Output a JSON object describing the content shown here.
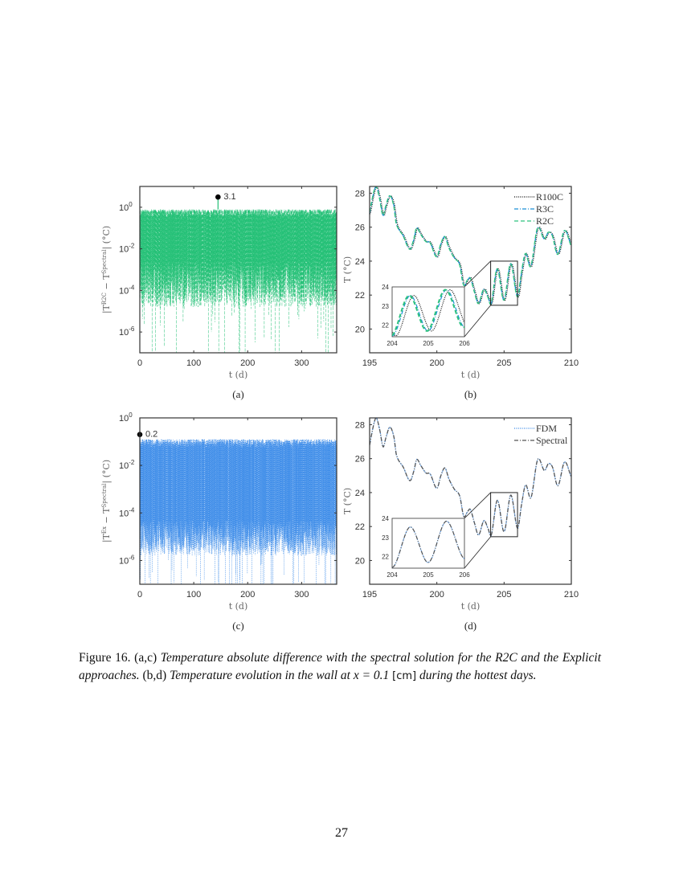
{
  "caption": {
    "label": "Figure 16.",
    "ac": "(a,c)",
    "ac_text": "Temperature absolute difference with the spectral solution for the R2C and the Explicit approaches.",
    "bd": "(b,d)",
    "bd_text": "Temperature evolution in the wall at x = 0.1",
    "unit": "[cm]",
    "end_text": "during the hottest days."
  },
  "page_number": "27",
  "chart_data": [
    {
      "panel_label": "(a)",
      "type": "line",
      "yscale": "log",
      "xlabel": "t (d)",
      "ylabel": {
        "left": "|T",
        "sup1": "R2C",
        "mid": " − T",
        "sup2": "Spectral",
        "right": "| (°C)"
      },
      "xlim": [
        0,
        365
      ],
      "ylim_exp": [
        -7,
        1
      ],
      "xticks": [
        "0",
        "100",
        "200",
        "300"
      ],
      "xtick_values": [
        0,
        100,
        200,
        300
      ],
      "yticks_base": "10",
      "yticks_exp": [
        "0",
        "-2",
        "-4",
        "-6"
      ],
      "ytick_values": [
        0,
        -2,
        -4,
        -6
      ],
      "series_color": "#25c077",
      "typical_upper_exp": [
        -0.6,
        -0.1
      ],
      "typical_lower_exp": [
        -4.8,
        -2.6
      ],
      "annotation": {
        "t": 145,
        "value": 3.1,
        "label": "3.1"
      }
    },
    {
      "panel_label": "(b)",
      "type": "line",
      "xlabel": "t (d)",
      "ylabel": "T (°C)",
      "xlim": [
        195,
        210
      ],
      "ylim": [
        18.6,
        28.4
      ],
      "xticks": [
        "195",
        "200",
        "205",
        "210"
      ],
      "xtick_values": [
        195,
        200,
        205,
        210
      ],
      "yticks": [
        "20",
        "22",
        "24",
        "26",
        "28"
      ],
      "ytick_values": [
        20,
        22,
        24,
        26,
        28
      ],
      "t": [
        195,
        195.3,
        195.5,
        195.75,
        196,
        196.2,
        196.5,
        196.8,
        197,
        197.5,
        198,
        198.3,
        198.5,
        198.8,
        199.2,
        199.5,
        200,
        200.3,
        200.6,
        200.9,
        201.3,
        201.7,
        202,
        202.3,
        202.5,
        202.8,
        203.1,
        203.5,
        203.8,
        204.05,
        204.5,
        205,
        205.5,
        206,
        206.3,
        206.6,
        207,
        207.5,
        208,
        208.3,
        208.6,
        209,
        209.5,
        210
      ],
      "T": [
        26.8,
        28.0,
        28.4,
        27.7,
        26.7,
        27.2,
        27.85,
        27.3,
        26.2,
        25.5,
        24.7,
        25.3,
        25.95,
        25.6,
        25.15,
        25.1,
        24.25,
        25.0,
        25.45,
        24.8,
        24.2,
        23.8,
        22.6,
        22.9,
        23.0,
        22.2,
        21.5,
        22.35,
        21.9,
        21.5,
        23.55,
        21.7,
        23.85,
        21.9,
        23.3,
        24.45,
        23.7,
        25.95,
        25.3,
        25.7,
        25.5,
        24.4,
        25.8,
        24.9
      ],
      "series": [
        {
          "name": "R100C",
          "color": "#111111",
          "style": "dotted",
          "time_shift": 0.06
        },
        {
          "name": "R3C",
          "color": "#1a8fd6",
          "style": "dashdot",
          "time_shift": 0
        },
        {
          "name": "R2C",
          "color": "#2ec27e",
          "style": "dashed",
          "time_shift": -0.02
        }
      ],
      "inset": {
        "xlim": [
          204,
          206
        ],
        "ylim": [
          21.4,
          24
        ],
        "xticks": [
          "204",
          "205",
          "206"
        ],
        "xtick_values": [
          204,
          205,
          206
        ],
        "yticks": [
          "22",
          "23",
          "24"
        ],
        "ytick_values": [
          22,
          23,
          24
        ]
      },
      "legend_position": "top-right"
    },
    {
      "panel_label": "(c)",
      "type": "line",
      "yscale": "log",
      "xlabel": "t (d)",
      "ylabel": {
        "left": "|T",
        "sup1": "Ex",
        "mid": " − T",
        "sup2": "Spectral",
        "right": "| (°C)"
      },
      "xlim": [
        0,
        365
      ],
      "ylim_exp": [
        -7,
        0
      ],
      "xticks": [
        "0",
        "100",
        "200",
        "300"
      ],
      "xtick_values": [
        0,
        100,
        200,
        300
      ],
      "yticks_base": "10",
      "yticks_exp": [
        "0",
        "-2",
        "-4",
        "-6"
      ],
      "ytick_values": [
        0,
        -2,
        -4,
        -6
      ],
      "series_color": "#3a8ae8",
      "typical_upper_exp": [
        -1.3,
        -0.9
      ],
      "typical_lower_exp": [
        -5.8,
        -4.3
      ],
      "annotation": {
        "t": 0,
        "value": 0.2,
        "label": "0.2"
      }
    },
    {
      "panel_label": "(d)",
      "type": "line",
      "xlabel": "t (d)",
      "ylabel": "T (°C)",
      "xlim": [
        195,
        210
      ],
      "ylim": [
        18.6,
        28.4
      ],
      "xticks": [
        "195",
        "200",
        "205",
        "210"
      ],
      "xtick_values": [
        195,
        200,
        205,
        210
      ],
      "yticks": [
        "20",
        "22",
        "24",
        "26",
        "28"
      ],
      "ytick_values": [
        20,
        22,
        24,
        26,
        28
      ],
      "series": [
        {
          "name": "FDM",
          "color": "#3a8ae8",
          "style": "dotted",
          "time_shift": 0
        },
        {
          "name": "Spectral",
          "color": "#555555",
          "style": "dashdot",
          "time_shift": 0
        }
      ],
      "inset": {
        "xlim": [
          204,
          206
        ],
        "ylim": [
          21.4,
          24
        ],
        "xticks": [
          "204",
          "205",
          "206"
        ],
        "xtick_values": [
          204,
          205,
          206
        ],
        "yticks": [
          "22",
          "23",
          "24"
        ],
        "ytick_values": [
          22,
          23,
          24
        ]
      },
      "legend_position": "top-right"
    }
  ]
}
